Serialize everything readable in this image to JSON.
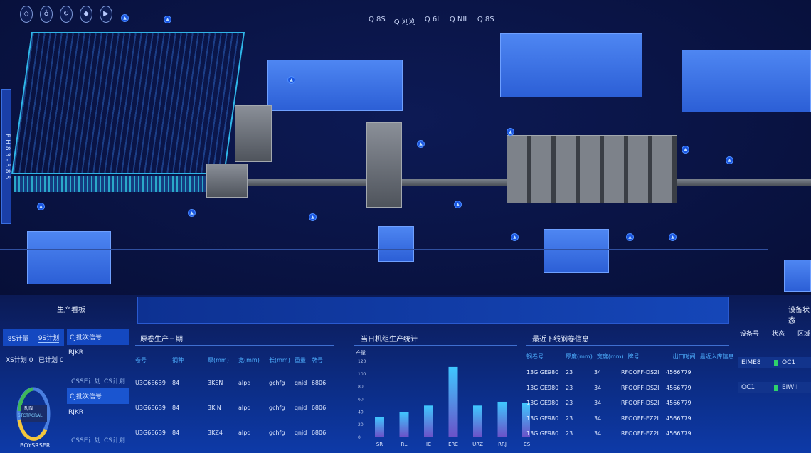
{
  "toolbar": {
    "icons": [
      "cube-icon",
      "drop-icon",
      "recycle-icon",
      "diamond-icon",
      "play-icon"
    ]
  },
  "top_nav": [
    "Q 8S",
    "Q 刈刈",
    "Q 6L",
    "Q NIL",
    "Q 8S"
  ],
  "scene": {
    "side_label": "P H 8 3 - 3 8 S"
  },
  "left_panel": {
    "title": "生产看板",
    "tabs": [
      "8S计量",
      "9S计划"
    ],
    "stats": [
      {
        "label": "XS计划",
        "value": "0"
      },
      {
        "label": "已计划",
        "value": "0"
      }
    ],
    "donut": {
      "center_top": "RJN",
      "center_bottom": "STCTRCRAL",
      "caption": "BOYSRSER",
      "segments": [
        {
          "color": "#3fb85a",
          "value": 25
        },
        {
          "color": "#4a7fe0",
          "value": 25
        },
        {
          "color": "#f3c63b",
          "value": 35
        },
        {
          "color": "#4a7fe0",
          "value": 15
        }
      ]
    }
  },
  "mid_list": [
    {
      "header": "CJ批次信号",
      "sub": "RJKR",
      "cols": [
        "CSSE计划",
        "CS计划"
      ]
    },
    {
      "header": "CJ批次信号",
      "sub": "RJKR",
      "cols": [
        "CSSE计划",
        "CS计划"
      ]
    }
  ],
  "prod_table": {
    "title": "原卷生产三期",
    "headers": [
      "卷号",
      "钢种",
      "厚(mm)",
      "宽(mm)",
      "长(mm)",
      "重量",
      "牌号"
    ],
    "rows": [
      [
        "U3G6E6B9",
        "84",
        "3KSN",
        "aIpd",
        "gchfg",
        "qnjd",
        "6806"
      ],
      [
        "U3G6E6B9",
        "84",
        "3KIN",
        "aIpd",
        "gchfg",
        "qnjd",
        "6806"
      ],
      [
        "U3G6E6B9",
        "84",
        "3KZ4",
        "aIpd",
        "gchfg",
        "qnjd",
        "6806"
      ]
    ]
  },
  "chart_data": {
    "type": "bar",
    "title": "当日机组生产统计",
    "ylabel": "产量",
    "ylim": [
      0,
      120
    ],
    "yticks": [
      0,
      20,
      40,
      60,
      80,
      100,
      120
    ],
    "categories": [
      "SR",
      "RL",
      "IC",
      "ERC",
      "URZ",
      "RRJ",
      "CS"
    ],
    "values": [
      31,
      39,
      49,
      110,
      49,
      55,
      53
    ],
    "grid": false,
    "bar_color_top": "#3fc8ff",
    "bar_color_bottom": "#6a52c8"
  },
  "recent_table": {
    "title": "最近下线钢卷信息",
    "headers": [
      "钢卷号",
      "厚度(mm)",
      "宽度(mm)",
      "牌号",
      "出口时间",
      "最近入库信息"
    ],
    "rows": [
      [
        "13GIGE980",
        "23",
        "34",
        "RFOOFF-DS2I",
        "4566779",
        ""
      ],
      [
        "13GIGE980",
        "23",
        "34",
        "RFOOFF-DS2I",
        "4566779",
        ""
      ],
      [
        "13GIGE980",
        "23",
        "34",
        "RFOOFF-DS2I",
        "4566779",
        ""
      ],
      [
        "13GIGE980",
        "23",
        "34",
        "RFOOFF-EZ2I",
        "4566779",
        ""
      ],
      [
        "13GIGE980",
        "23",
        "34",
        "RFOOFF-EZ2I",
        "4566779",
        ""
      ]
    ]
  },
  "right_panel": {
    "title": "设备状态",
    "headers": [
      "设备号",
      "状态",
      "区域"
    ],
    "rows": [
      {
        "a": "EIME8",
        "status_color": "#2ed36b",
        "b": "OC1"
      },
      {
        "a": "OC1",
        "status_color": "#2ed36b",
        "b": "EIWII"
      }
    ]
  }
}
